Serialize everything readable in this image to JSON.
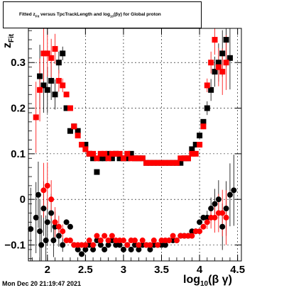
{
  "page": {
    "timestamp": "Mon Dec 20 21:19:47 2021"
  },
  "chart_data": {
    "type": "scatter",
    "title": "Fitted  z_Fit  versus TpcTrackLength and log_10(βγ) for Global proton",
    "title_parts": {
      "pre": "Fitted  z",
      "sub1": "Fit",
      "mid": "  versus TpcTrackLength and log",
      "sub2": "10",
      "post": "(βγ) for Global proton"
    },
    "xlabel": "log_10(βγ)",
    "xlabel_parts": {
      "main": "log",
      "sub": "10",
      "post": "(β γ)"
    },
    "ylabel": "z_Fit",
    "ylabel_parts": {
      "main": "z",
      "sub": "Fit"
    },
    "xlim": [
      1.75,
      4.55
    ],
    "ylim": [
      -0.135,
      0.375
    ],
    "xticks": [
      2,
      2.5,
      3,
      3.5,
      4,
      4.5
    ],
    "xtick_labels": [
      "2",
      "2.5",
      "3",
      "3.5",
      "4",
      "4.5"
    ],
    "yticks": [
      -0.1,
      0,
      0.1,
      0.2,
      0.3
    ],
    "ytick_labels": [
      "−0.1",
      "0",
      "0.1",
      "0.2",
      "0.3"
    ],
    "grid": true,
    "colors": {
      "series_a": "#000000",
      "series_b": "#ff0000",
      "frame": "#000000",
      "grid": "#000000"
    },
    "series": [
      {
        "name": "",
        "color": "#000000",
        "marker": "square",
        "points": [
          [
            1.9,
            0.27
          ],
          [
            1.95,
            0.25
          ],
          [
            2.0,
            0.24
          ],
          [
            2.05,
            0.26
          ],
          [
            2.1,
            0.23
          ],
          [
            2.15,
            0.3
          ],
          [
            2.2,
            0.32
          ],
          [
            2.25,
            0.2
          ],
          [
            2.3,
            0.15
          ],
          [
            2.35,
            0.16
          ],
          [
            2.4,
            0.15
          ],
          [
            2.45,
            0.12
          ],
          [
            2.5,
            0.12
          ],
          [
            2.55,
            0.1
          ],
          [
            2.6,
            0.09
          ],
          [
            2.65,
            0.06
          ],
          [
            2.7,
            0.09
          ],
          [
            2.75,
            0.09
          ],
          [
            2.8,
            0.1
          ],
          [
            2.85,
            0.09
          ],
          [
            2.9,
            0.1
          ],
          [
            2.95,
            0.09
          ],
          [
            3.0,
            0.09
          ],
          [
            3.05,
            0.09
          ],
          [
            3.1,
            0.1
          ],
          [
            3.15,
            0.09
          ],
          [
            3.2,
            0.09
          ],
          [
            3.25,
            0.09
          ],
          [
            3.3,
            0.08
          ],
          [
            3.35,
            0.08
          ],
          [
            3.4,
            0.08
          ],
          [
            3.45,
            0.08
          ],
          [
            3.5,
            0.08
          ],
          [
            3.55,
            0.08
          ],
          [
            3.6,
            0.08
          ],
          [
            3.65,
            0.08
          ],
          [
            3.7,
            0.08
          ],
          [
            3.75,
            0.08
          ],
          [
            3.8,
            0.09
          ],
          [
            3.85,
            0.09
          ],
          [
            3.9,
            0.11
          ],
          [
            3.95,
            0.12
          ],
          [
            4.0,
            0.14
          ],
          [
            4.05,
            0.17
          ],
          [
            4.1,
            0.2
          ],
          [
            4.15,
            0.24
          ],
          [
            4.2,
            0.28
          ],
          [
            4.25,
            0.3
          ],
          [
            4.3,
            0.32
          ],
          [
            4.35,
            0.35
          ],
          [
            4.4,
            0.31
          ]
        ]
      },
      {
        "name": "",
        "color": "#ff0000",
        "marker": "square",
        "points": [
          [
            1.85,
            0.18
          ],
          [
            1.9,
            0.24
          ],
          [
            1.95,
            0.32
          ],
          [
            2.0,
            0.32
          ],
          [
            2.05,
            0.31
          ],
          [
            2.1,
            0.33
          ],
          [
            2.15,
            0.26
          ],
          [
            2.2,
            0.25
          ],
          [
            2.25,
            0.23
          ],
          [
            2.3,
            0.2
          ],
          [
            2.35,
            0.16
          ],
          [
            2.4,
            0.14
          ],
          [
            2.45,
            0.12
          ],
          [
            2.5,
            0.11
          ],
          [
            2.55,
            0.1
          ],
          [
            2.6,
            0.1
          ],
          [
            2.65,
            0.09
          ],
          [
            2.7,
            0.1
          ],
          [
            2.75,
            0.1
          ],
          [
            2.8,
            0.09
          ],
          [
            2.85,
            0.1
          ],
          [
            2.9,
            0.1
          ],
          [
            2.95,
            0.1
          ],
          [
            3.0,
            0.09
          ],
          [
            3.05,
            0.1
          ],
          [
            3.1,
            0.09
          ],
          [
            3.15,
            0.09
          ],
          [
            3.2,
            0.09
          ],
          [
            3.25,
            0.09
          ],
          [
            3.3,
            0.08
          ],
          [
            3.35,
            0.08
          ],
          [
            3.4,
            0.08
          ],
          [
            3.45,
            0.08
          ],
          [
            3.5,
            0.08
          ],
          [
            3.55,
            0.08
          ],
          [
            3.6,
            0.08
          ],
          [
            3.65,
            0.08
          ],
          [
            3.7,
            0.08
          ],
          [
            3.75,
            0.09
          ],
          [
            3.8,
            0.09
          ],
          [
            3.85,
            0.09
          ],
          [
            3.9,
            0.1
          ],
          [
            3.95,
            0.1
          ],
          [
            4.0,
            0.12
          ],
          [
            4.05,
            0.16
          ],
          [
            4.1,
            0.25
          ],
          [
            4.15,
            0.3
          ],
          [
            4.2,
            0.35
          ],
          [
            4.25,
            0.29
          ],
          [
            4.3,
            0.28
          ],
          [
            4.35,
            0.3
          ]
        ]
      },
      {
        "name": "",
        "color": "#000000",
        "marker": "circle",
        "points": [
          [
            1.78,
            -0.065
          ],
          [
            1.85,
            -0.04
          ],
          [
            1.88,
            0.01
          ],
          [
            1.9,
            -0.07
          ],
          [
            1.92,
            -0.1
          ],
          [
            1.95,
            -0.02
          ],
          [
            1.98,
            -0.09
          ],
          [
            2.0,
            -0.05
          ],
          [
            2.05,
            -0.03
          ],
          [
            2.08,
            -0.09
          ],
          [
            2.1,
            -0.06
          ],
          [
            2.15,
            -0.08
          ],
          [
            2.2,
            -0.1
          ],
          [
            2.25,
            -0.05
          ],
          [
            2.3,
            -0.06
          ],
          [
            2.35,
            -0.1
          ],
          [
            2.4,
            -0.11
          ],
          [
            2.45,
            -0.12
          ],
          [
            2.5,
            -0.11
          ],
          [
            2.55,
            -0.1
          ],
          [
            2.6,
            -0.11
          ],
          [
            2.65,
            -0.09
          ],
          [
            2.7,
            -0.1
          ],
          [
            2.75,
            -0.11
          ],
          [
            2.8,
            -0.1
          ],
          [
            2.85,
            -0.09
          ],
          [
            2.9,
            -0.1
          ],
          [
            2.95,
            -0.1
          ],
          [
            3.0,
            -0.11
          ],
          [
            3.05,
            -0.1
          ],
          [
            3.1,
            -0.11
          ],
          [
            3.15,
            -0.1
          ],
          [
            3.2,
            -0.11
          ],
          [
            3.25,
            -0.1
          ],
          [
            3.3,
            -0.1
          ],
          [
            3.35,
            -0.11
          ],
          [
            3.4,
            -0.1
          ],
          [
            3.45,
            -0.1
          ],
          [
            3.5,
            -0.1
          ],
          [
            3.55,
            -0.1
          ],
          [
            3.6,
            -0.09
          ],
          [
            3.65,
            -0.09
          ],
          [
            3.7,
            -0.09
          ],
          [
            3.75,
            -0.08
          ],
          [
            3.8,
            -0.08
          ],
          [
            3.85,
            -0.08
          ],
          [
            3.9,
            -0.07
          ],
          [
            3.95,
            -0.07
          ],
          [
            4.0,
            -0.05
          ],
          [
            4.05,
            -0.04
          ],
          [
            4.1,
            -0.04
          ],
          [
            4.15,
            -0.02
          ],
          [
            4.2,
            -0.01
          ],
          [
            4.25,
            0.0
          ],
          [
            4.3,
            -0.06
          ],
          [
            4.35,
            -0.02
          ],
          [
            4.4,
            0.01
          ],
          [
            4.45,
            0.02
          ]
        ]
      },
      {
        "name": "",
        "color": "#ff0000",
        "marker": "circle",
        "points": [
          [
            1.95,
            0.02
          ],
          [
            2.0,
            0.03
          ],
          [
            2.05,
            0.0
          ],
          [
            2.1,
            -0.05
          ],
          [
            2.15,
            -0.06
          ],
          [
            2.2,
            -0.07
          ],
          [
            2.25,
            -0.09
          ],
          [
            2.3,
            -0.09
          ],
          [
            2.35,
            -0.1
          ],
          [
            2.4,
            -0.1
          ],
          [
            2.45,
            -0.1
          ],
          [
            2.5,
            -0.1
          ],
          [
            2.55,
            -0.09
          ],
          [
            2.6,
            -0.1
          ],
          [
            2.65,
            -0.08
          ],
          [
            2.7,
            -0.09
          ],
          [
            2.75,
            -0.08
          ],
          [
            2.8,
            -0.09
          ],
          [
            2.85,
            -0.08
          ],
          [
            2.9,
            -0.09
          ],
          [
            2.95,
            -0.09
          ],
          [
            3.0,
            -0.09
          ],
          [
            3.05,
            -0.1
          ],
          [
            3.1,
            -0.09
          ],
          [
            3.15,
            -0.09
          ],
          [
            3.2,
            -0.1
          ],
          [
            3.25,
            -0.09
          ],
          [
            3.3,
            -0.1
          ],
          [
            3.35,
            -0.1
          ],
          [
            3.4,
            -0.09
          ],
          [
            3.45,
            -0.1
          ],
          [
            3.5,
            -0.09
          ],
          [
            3.55,
            -0.09
          ],
          [
            3.6,
            -0.09
          ],
          [
            3.65,
            -0.08
          ],
          [
            3.7,
            -0.09
          ],
          [
            3.75,
            -0.08
          ],
          [
            3.8,
            -0.08
          ],
          [
            3.85,
            -0.08
          ],
          [
            3.9,
            -0.08
          ],
          [
            3.95,
            -0.07
          ],
          [
            4.0,
            -0.07
          ],
          [
            4.05,
            -0.06
          ],
          [
            4.1,
            -0.05
          ],
          [
            4.15,
            -0.04
          ],
          [
            4.2,
            -0.04
          ],
          [
            4.25,
            -0.03
          ],
          [
            4.3,
            -0.03
          ],
          [
            4.35,
            -0.04
          ]
        ]
      }
    ]
  }
}
